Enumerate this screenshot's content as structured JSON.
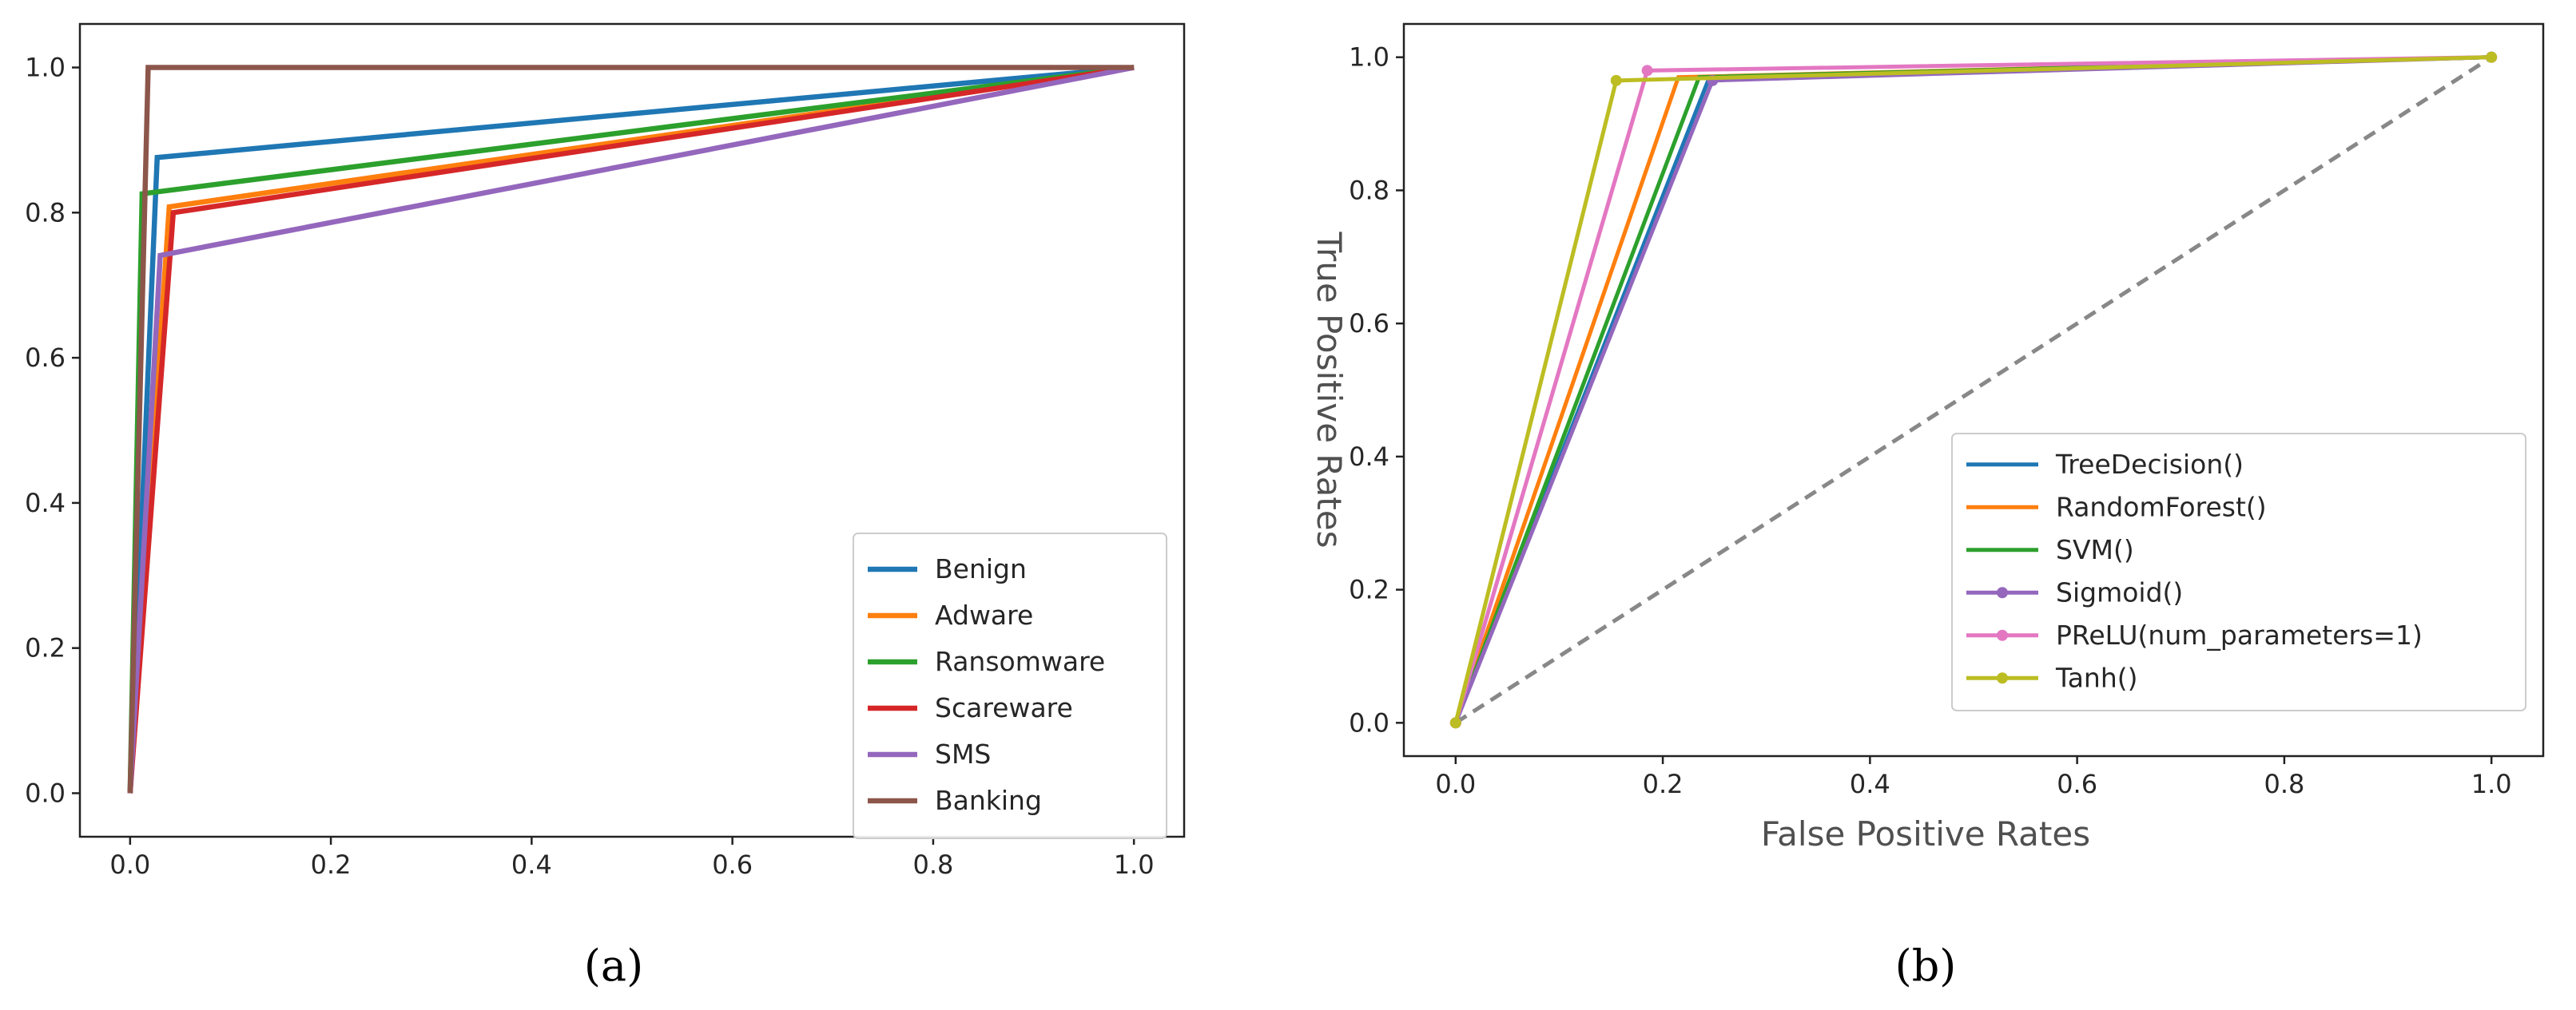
{
  "chart_data": [
    {
      "type": "line",
      "caption": "(a)",
      "title": "",
      "xlabel": "",
      "ylabel": "",
      "xlim": [
        -0.05,
        1.05
      ],
      "ylim": [
        -0.06,
        1.06
      ],
      "xticks": [
        "0.0",
        "0.2",
        "0.4",
        "0.6",
        "0.8",
        "1.0"
      ],
      "yticks": [
        "0.0",
        "0.2",
        "0.4",
        "0.6",
        "0.8",
        "1.0"
      ],
      "legend": "lower-right",
      "series": [
        {
          "name": "Benign",
          "color": "#1f77b4",
          "x": [
            0,
            0.027,
            1
          ],
          "y": [
            0,
            0.876,
            1
          ]
        },
        {
          "name": "Adware",
          "color": "#ff7f0e",
          "x": [
            0,
            0.039,
            1
          ],
          "y": [
            0,
            0.808,
            1
          ]
        },
        {
          "name": "Ransomware",
          "color": "#2ca02c",
          "x": [
            0,
            0.012,
            1
          ],
          "y": [
            0,
            0.826,
            1
          ]
        },
        {
          "name": "Scareware",
          "color": "#d62728",
          "x": [
            0,
            0.043,
            1
          ],
          "y": [
            0,
            0.8,
            1
          ]
        },
        {
          "name": "SMS",
          "color": "#9467bd",
          "x": [
            0,
            0.03,
            1
          ],
          "y": [
            0,
            0.741,
            1
          ]
        },
        {
          "name": "Banking",
          "color": "#8c564b",
          "x": [
            0,
            0.018,
            1
          ],
          "y": [
            0,
            1.0,
            1
          ]
        }
      ]
    },
    {
      "type": "line",
      "caption": "(b)",
      "title": "",
      "xlabel": "False Positive Rates",
      "ylabel": "True Positive Rates",
      "xlim": [
        -0.05,
        1.05
      ],
      "ylim": [
        -0.05,
        1.05
      ],
      "xticks": [
        "0.0",
        "0.2",
        "0.4",
        "0.6",
        "0.8",
        "1.0"
      ],
      "yticks": [
        "0.0",
        "0.2",
        "0.4",
        "0.6",
        "0.8",
        "1.0"
      ],
      "legend": "lower-right",
      "diagonal": {
        "x": [
          0,
          1
        ],
        "y": [
          0,
          1
        ],
        "color": "#888888"
      },
      "series": [
        {
          "name": "TreeDecision()",
          "color": "#1f77b4",
          "x": [
            0,
            0.245,
            1
          ],
          "y": [
            0,
            0.97,
            1
          ]
        },
        {
          "name": "RandomForest()",
          "color": "#ff7f0e",
          "x": [
            0,
            0.215,
            1
          ],
          "y": [
            0,
            0.97,
            1
          ]
        },
        {
          "name": "SVM()",
          "color": "#2ca02c",
          "x": [
            0,
            0.235,
            1
          ],
          "y": [
            0,
            0.97,
            1
          ]
        },
        {
          "name": "Sigmoid()",
          "color": "#9467bd",
          "x": [
            0,
            0.248,
            1
          ],
          "y": [
            0,
            0.965,
            1
          ],
          "marker": true
        },
        {
          "name": "PReLU(num_parameters=1)",
          "color": "#e377c2",
          "x": [
            0,
            0.185,
            1
          ],
          "y": [
            0,
            0.98,
            1
          ],
          "marker": true
        },
        {
          "name": "Tanh()",
          "color": "#bcbd22",
          "x": [
            0,
            0.155,
            1
          ],
          "y": [
            0,
            0.965,
            1
          ],
          "marker": true
        }
      ]
    }
  ]
}
